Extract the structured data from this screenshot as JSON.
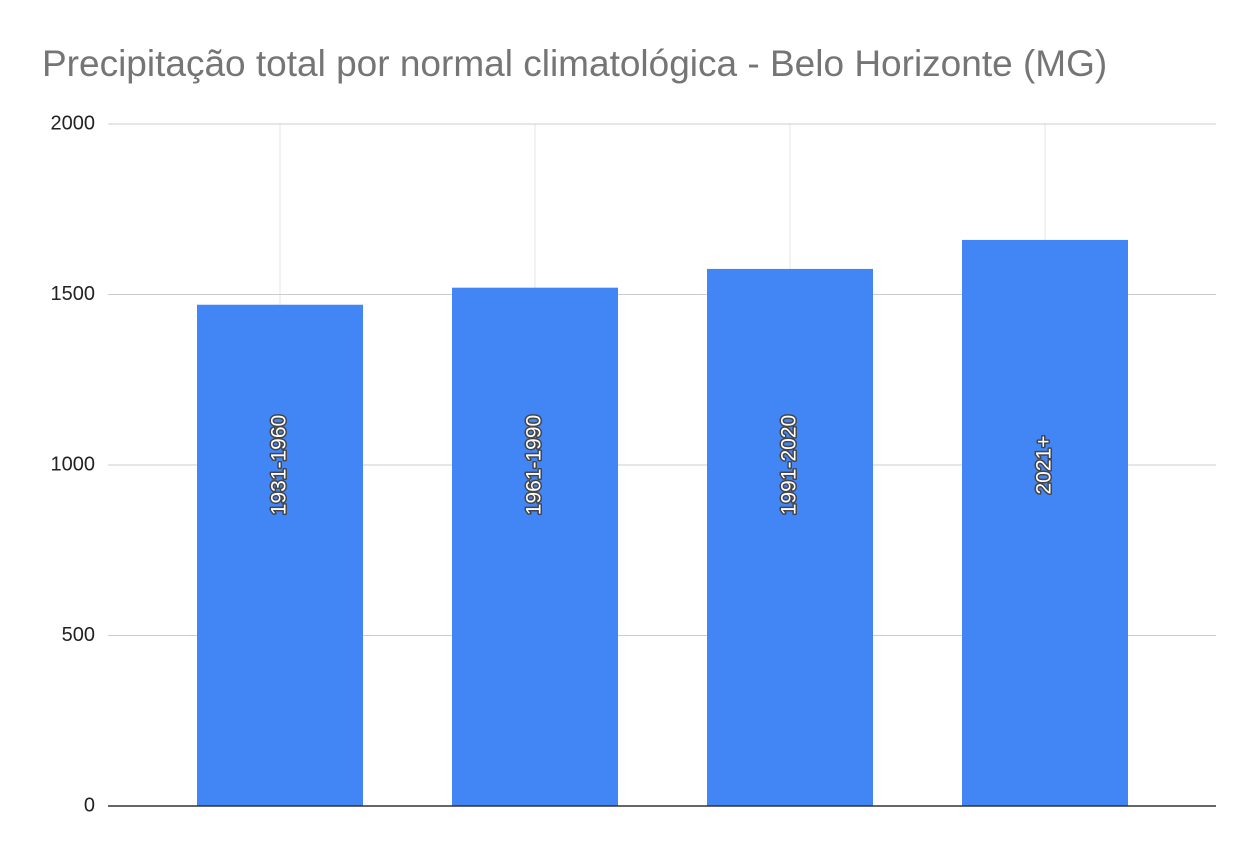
{
  "chart_data": {
    "type": "bar",
    "title": "Precipitação total por normal climatológica - Belo Horizonte (MG)",
    "categories": [
      "1931-1960",
      "1961-1990",
      "1991-2020",
      "2021+"
    ],
    "values": [
      1470,
      1520,
      1575,
      1660
    ],
    "color": "#4285f4",
    "ylim": [
      0,
      2000
    ],
    "yticks": [
      0,
      500,
      1000,
      1500,
      2000
    ],
    "grid": true
  }
}
